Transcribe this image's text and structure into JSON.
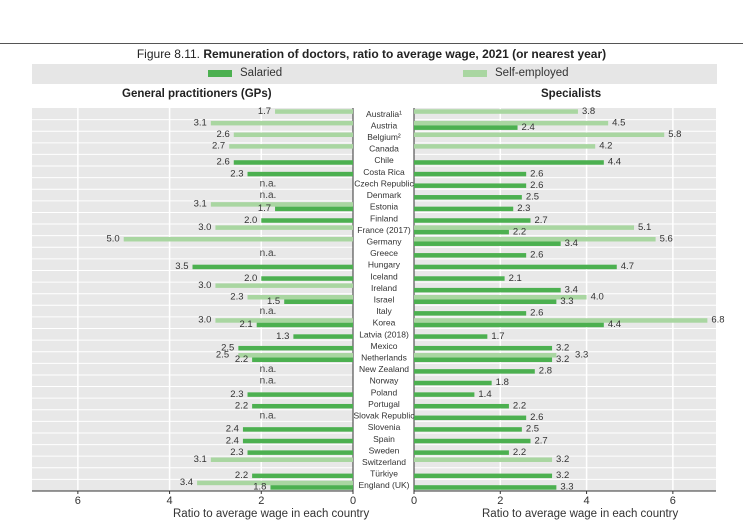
{
  "title_prefix": "Figure 8.11.",
  "title": "Remuneration of doctors, ratio to average wage, 2021 (or nearest year)",
  "colors": {
    "salaried": "#4cb050",
    "self_employed": "#a9d6a1",
    "plot_bg": "#e8e8e8"
  },
  "chart_data": [
    {
      "type": "bar",
      "orientation": "horizontal",
      "direction": "right-to-left",
      "title": "General practitioners (GPs)",
      "xlabel": "Ratio to average wage in each country",
      "xlim": [
        0,
        7
      ],
      "xticks": [
        0,
        2,
        4,
        6
      ],
      "legend": "top",
      "categories": [
        "Australia¹",
        "Austria",
        "Belgium²",
        "Canada",
        "Chile",
        "Costa Rica",
        "Czech Republic",
        "Denmark",
        "Estonia",
        "Finland",
        "France (2017)",
        "Germany",
        "Greece",
        "Hungary",
        "Iceland",
        "Ireland",
        "Israel",
        "Italy",
        "Korea",
        "Latvia (2018)",
        "Mexico",
        "Netherlands",
        "New Zealand",
        "Norway",
        "Poland",
        "Portugal",
        "Slovak Republic",
        "Slovenia",
        "Spain",
        "Sweden",
        "Switzerland",
        "Türkiye",
        "England (UK)"
      ],
      "series": [
        {
          "name": "Salaried",
          "values": [
            null,
            null,
            null,
            null,
            2.6,
            2.3,
            null,
            null,
            1.7,
            2.0,
            null,
            null,
            null,
            3.5,
            2.0,
            null,
            1.5,
            null,
            2.1,
            1.3,
            2.5,
            2.2,
            null,
            null,
            2.3,
            2.2,
            null,
            2.4,
            2.4,
            2.3,
            null,
            2.2,
            1.8
          ]
        },
        {
          "name": "Self-employed",
          "values": [
            1.7,
            3.1,
            2.6,
            2.7,
            null,
            null,
            null,
            null,
            3.1,
            null,
            3.0,
            5.0,
            null,
            null,
            null,
            3.0,
            2.3,
            null,
            3.0,
            null,
            null,
            2.5,
            null,
            null,
            null,
            null,
            null,
            null,
            null,
            null,
            3.1,
            null,
            3.4
          ]
        }
      ],
      "na_label": "n.a.",
      "na_categories": [
        "Czech Republic",
        "Denmark",
        "Greece",
        "Italy",
        "New Zealand",
        "Norway",
        "Slovak Republic"
      ]
    },
    {
      "type": "bar",
      "orientation": "horizontal",
      "title": "Specialists",
      "xlabel": "Ratio to average wage in each country",
      "xlim": [
        0,
        7
      ],
      "xticks": [
        0,
        2,
        4,
        6
      ],
      "legend": "top",
      "categories": [
        "Australia¹",
        "Austria",
        "Belgium²",
        "Canada",
        "Chile",
        "Costa Rica",
        "Czech Republic",
        "Denmark",
        "Estonia",
        "Finland",
        "France (2017)",
        "Germany",
        "Greece",
        "Hungary",
        "Iceland",
        "Ireland",
        "Israel",
        "Italy",
        "Korea",
        "Latvia (2018)",
        "Mexico",
        "Netherlands",
        "New Zealand",
        "Norway",
        "Poland",
        "Portugal",
        "Slovak Republic",
        "Slovenia",
        "Spain",
        "Sweden",
        "Switzerland",
        "Türkiye",
        "England (UK)"
      ],
      "series": [
        {
          "name": "Salaried",
          "values": [
            null,
            2.4,
            null,
            null,
            4.4,
            2.6,
            2.6,
            2.5,
            2.3,
            2.7,
            2.2,
            3.4,
            2.6,
            4.7,
            2.1,
            3.4,
            3.3,
            2.6,
            4.4,
            1.7,
            3.2,
            3.2,
            2.8,
            1.8,
            1.4,
            2.2,
            2.6,
            2.5,
            2.7,
            2.2,
            null,
            3.2,
            3.3
          ]
        },
        {
          "name": "Self-employed",
          "values": [
            3.8,
            4.5,
            5.8,
            4.2,
            null,
            null,
            null,
            null,
            null,
            null,
            5.1,
            5.6,
            null,
            null,
            null,
            null,
            4.0,
            null,
            6.8,
            null,
            null,
            3.3,
            null,
            null,
            null,
            null,
            null,
            null,
            null,
            null,
            3.2,
            null,
            null
          ]
        }
      ]
    }
  ]
}
